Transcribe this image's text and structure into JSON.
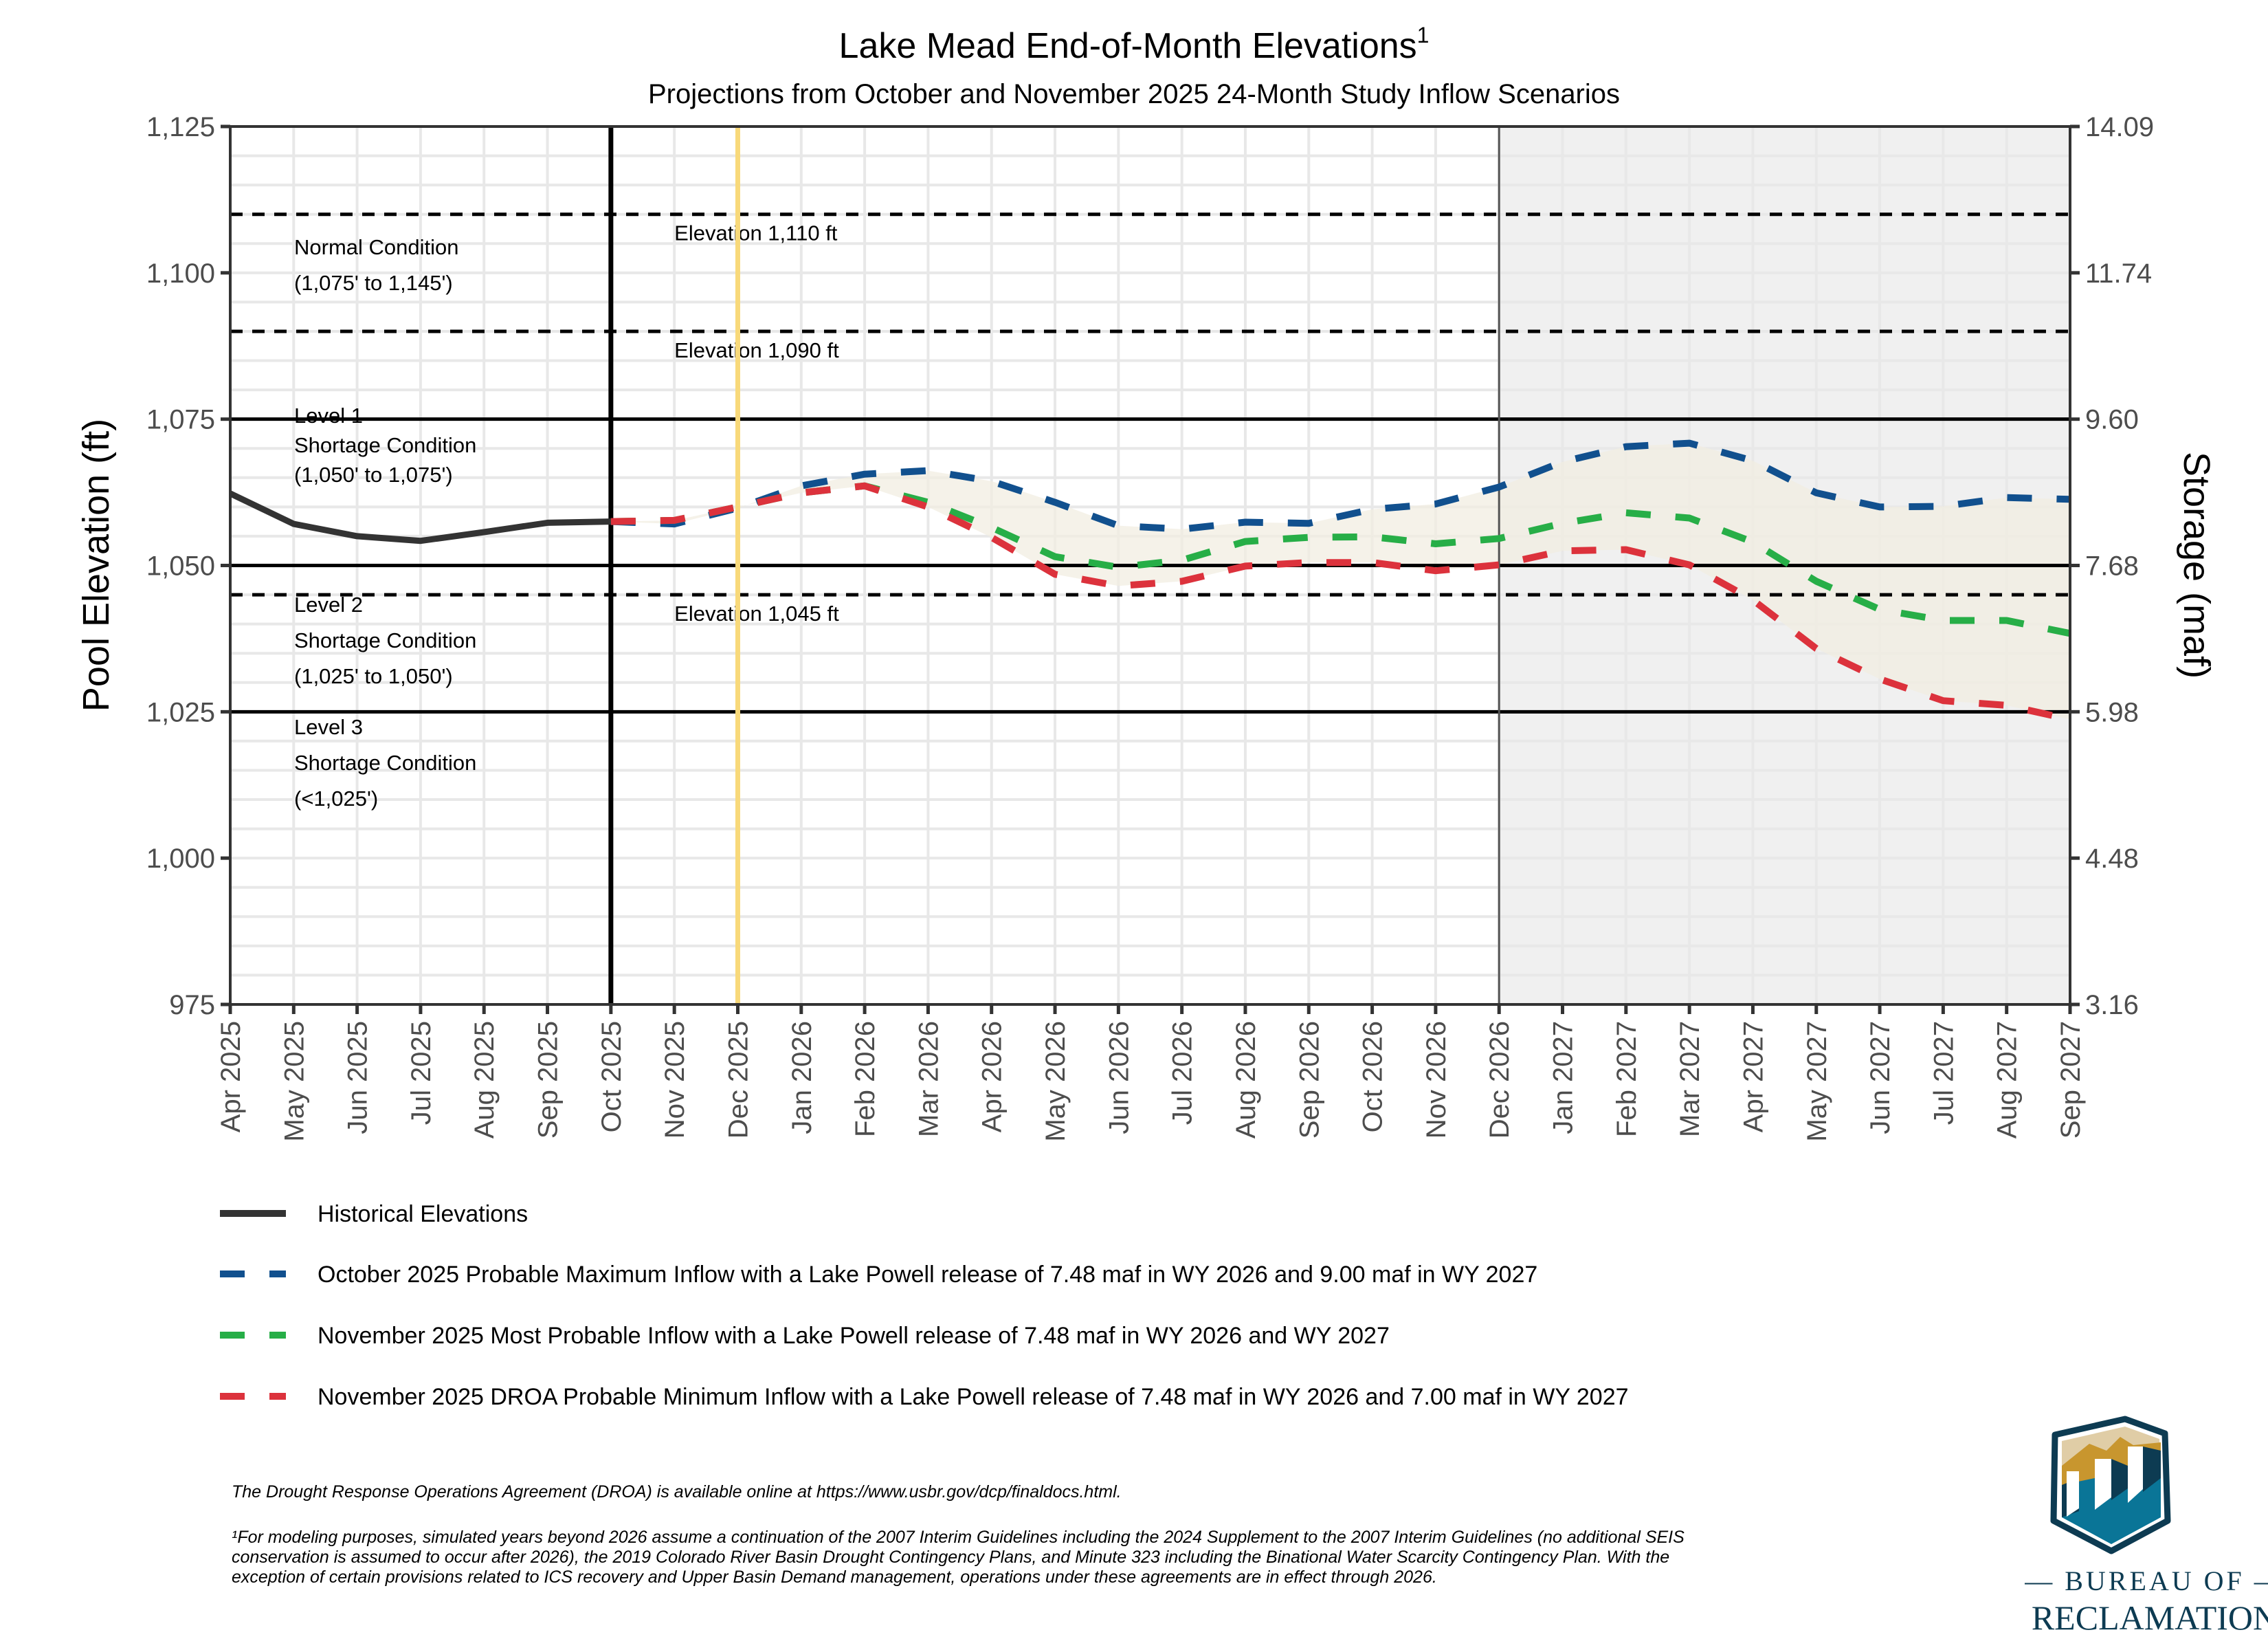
{
  "chart_data": {
    "type": "line",
    "title": "Lake Mead End-of-Month Elevations",
    "title_superscript": "1",
    "subtitle": "Projections from October and November 2025 24-Month Study Inflow Scenarios",
    "ylabel": "Pool Elevation (ft)",
    "ylabel_right": "Storage (maf)",
    "ylim": [
      975,
      1125
    ],
    "yticks": [
      975,
      1000,
      1025,
      1050,
      1075,
      1100,
      1125
    ],
    "ytick_labels": [
      "975",
      "1,000",
      "1,025",
      "1,050",
      "1,075",
      "1,100",
      "1,125"
    ],
    "yticks_right_labels": [
      "3.16",
      "4.48",
      "5.98",
      "7.68",
      "9.60",
      "11.74",
      "14.09"
    ],
    "grid": true,
    "x": [
      "Apr 2025",
      "May 2025",
      "Jun 2025",
      "Jul 2025",
      "Aug 2025",
      "Sep 2025",
      "Oct 2025",
      "Nov 2025",
      "Dec 2025",
      "Jan 2026",
      "Feb 2026",
      "Mar 2026",
      "Apr 2026",
      "May 2026",
      "Jun 2026",
      "Jul 2026",
      "Aug 2026",
      "Sep 2026",
      "Oct 2026",
      "Nov 2026",
      "Dec 2026",
      "Jan 2027",
      "Feb 2027",
      "Mar 2027",
      "Apr 2027",
      "May 2027",
      "Jun 2027",
      "Jul 2027",
      "Aug 2027",
      "Sep 2027"
    ],
    "series": [
      {
        "name": "Historical Elevations",
        "style": "solid",
        "color": "#333333",
        "start_index": 0,
        "values": [
          1062.3,
          1057.1,
          1055.0,
          1054.2,
          1055.7,
          1057.3,
          1057.5
        ]
      },
      {
        "name": "October 2025 Probable Maximum Inflow with a Lake Powell release of 7.48 maf in WY 2026 and 9.00 maf in WY 2027",
        "style": "dashed",
        "color": "#11508e",
        "start_index": 6,
        "values": [
          1057.5,
          1057.1,
          1059.8,
          1063.6,
          1065.6,
          1066.2,
          1064.4,
          1060.8,
          1056.8,
          1056.2,
          1057.4,
          1057.2,
          1059.6,
          1060.5,
          1063.4,
          1067.7,
          1070.3,
          1070.9,
          1067.9,
          1062.4,
          1060.0,
          1060.1,
          1061.6,
          1061.3
        ]
      },
      {
        "name": "November 2025 Most Probable Inflow with a Lake Powell release of 7.48 maf in WY 2026 and WY 2027",
        "style": "dashed",
        "color": "#27ae47",
        "start_index": 6,
        "values": [
          1057.5,
          1057.7,
          1060.0,
          1062.4,
          1063.6,
          1060.8,
          1056.5,
          1051.5,
          1049.7,
          1050.9,
          1054.1,
          1054.8,
          1054.9,
          1053.7,
          1054.6,
          1057.2,
          1059.0,
          1058.1,
          1054.0,
          1047.3,
          1042.5,
          1040.6,
          1040.6,
          1038.4
        ]
      },
      {
        "name": "November 2025 DROA Probable Minimum Inflow with a Lake Powell release of 7.48 maf in WY 2026 and 7.00 maf in WY 2027",
        "style": "dashed",
        "color": "#dc323c",
        "start_index": 6,
        "values": [
          1057.5,
          1057.7,
          1060.0,
          1062.4,
          1063.6,
          1060.0,
          1054.8,
          1048.5,
          1046.5,
          1047.3,
          1049.9,
          1050.5,
          1050.5,
          1049.1,
          1050.1,
          1052.5,
          1052.7,
          1050.1,
          1044.1,
          1035.8,
          1030.6,
          1026.9,
          1026.1,
          1023.7
        ]
      }
    ],
    "ribbon": {
      "description": "range between maximum and minimum projections",
      "color": "#f2eee2"
    },
    "reference_lines": [
      {
        "y": 1110,
        "style": "dashed",
        "label": "Elevation 1,110 ft"
      },
      {
        "y": 1090,
        "style": "dashed",
        "label": "Elevation 1,090 ft"
      },
      {
        "y": 1075,
        "style": "solid",
        "label": ""
      },
      {
        "y": 1050,
        "style": "solid",
        "label": ""
      },
      {
        "y": 1045,
        "style": "dashed",
        "label": "Elevation 1,045 ft"
      },
      {
        "y": 1025,
        "style": "solid",
        "label": ""
      }
    ],
    "vertical_markers": [
      {
        "x": "Oct 2025",
        "color": "#000000",
        "note": "start of projections"
      },
      {
        "x": "Dec 2025",
        "color": "#f8d97a",
        "note": "highlight"
      },
      {
        "x": "Dec 2026",
        "color": "#555555",
        "note": "start of shaded region"
      }
    ],
    "shaded_region": {
      "from": "Dec 2026",
      "to": "Sep 2027",
      "color": "#f0f0f0"
    },
    "condition_annotations": [
      {
        "lines": [
          "Normal Condition",
          "(1,075' to 1,145')"
        ]
      },
      {
        "lines": [
          "Level 1",
          "Shortage Condition",
          "(1,050' to 1,075')"
        ]
      },
      {
        "lines": [
          "Level 2",
          "Shortage Condition",
          "(1,025' to 1,050')"
        ]
      },
      {
        "lines": [
          "Level 3",
          "Shortage Condition",
          "(<1,025')"
        ]
      }
    ],
    "legend_placement": "bottom"
  },
  "notes": {
    "droa": "The Drought Response Operations Agreement (DROA) is available online at https://www.usbr.gov/dcp/finaldocs.html.",
    "footnote_lines": [
      "¹For modeling purposes, simulated years beyond 2026 assume a continuation of the 2007 Interim Guidelines including the 2024 Supplement to the 2007 Interim Guidelines (no additional SEIS",
      "conservation is assumed to occur after 2026), the 2019 Colorado River Basin Drought Contingency Plans, and Minute 323 including the Binational Water Scarcity Contingency Plan. With the",
      "exception of certain provisions related to ICS recovery and Upper Basin Demand management, operations under these agreements are in effect through 2026."
    ]
  },
  "logo": {
    "line1": "— BUREAU OF —",
    "line2": "RECLAMATION",
    "colors": {
      "navy": "#0d3b52",
      "teal": "#0a7597",
      "gold": "#c8962e",
      "sand": "#e0cda6"
    }
  }
}
